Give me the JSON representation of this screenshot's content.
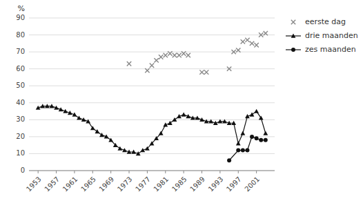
{
  "chart_data": {
    "type": "line",
    "ylabel": "%",
    "xlim": [
      1951,
      2005
    ],
    "xticks": [
      1953,
      1957,
      1961,
      1965,
      1969,
      1973,
      1977,
      1981,
      1985,
      1989,
      1993,
      1997,
      2001
    ],
    "ylim": [
      0,
      90
    ],
    "yticks": [
      0,
      10,
      20,
      30,
      40,
      50,
      60,
      70,
      80,
      90
    ],
    "grid": true,
    "legend": "right",
    "series": [
      {
        "name": "eerste dag",
        "type": "scatter",
        "color": "#888888",
        "marker": "x",
        "line_style": "none",
        "x": [
          1973,
          1977,
          1978,
          1979,
          1980,
          1981,
          1982,
          1983,
          1984,
          1985,
          1986,
          1989,
          1990,
          1995,
          1996,
          1997,
          1998,
          1999,
          2000,
          2001,
          2002,
          2003
        ],
        "values": [
          63,
          59,
          62,
          65,
          67,
          68,
          69,
          68,
          68,
          69,
          68,
          58,
          58,
          60,
          70,
          71,
          76,
          77,
          75,
          74,
          80,
          81
        ]
      },
      {
        "name": "drie maanden",
        "type": "line",
        "color": "#111111",
        "marker": "triangle",
        "line_style": "solid",
        "x": [
          1953,
          1954,
          1955,
          1956,
          1957,
          1958,
          1959,
          1960,
          1961,
          1962,
          1963,
          1964,
          1965,
          1966,
          1967,
          1968,
          1969,
          1970,
          1971,
          1972,
          1973,
          1974,
          1975,
          1976,
          1977,
          1978,
          1979,
          1980,
          1981,
          1982,
          1983,
          1984,
          1985,
          1986,
          1987,
          1988,
          1989,
          1990,
          1991,
          1992,
          1993,
          1994,
          1995,
          1996,
          1997,
          1998,
          1999,
          2000,
          2001,
          2002,
          2003
        ],
        "values": [
          37,
          38,
          38,
          38,
          37,
          36,
          35,
          34,
          33,
          31,
          30,
          29,
          25,
          23,
          21,
          20,
          18,
          15,
          13,
          12,
          11,
          11,
          10,
          12,
          13,
          16,
          19,
          22,
          27,
          28,
          30,
          32,
          33,
          32,
          31,
          31,
          30,
          29,
          29,
          28,
          29,
          29,
          28,
          28,
          16,
          22,
          32,
          33,
          35,
          31,
          22
        ]
      },
      {
        "name": "zes maanden",
        "type": "line",
        "color": "#111111",
        "marker": "circle",
        "line_style": "solid",
        "x": [
          1995,
          1997,
          1998,
          1999,
          2000,
          2001,
          2002,
          2003
        ],
        "values": [
          6,
          12,
          12,
          12,
          20,
          19,
          18,
          18
        ]
      }
    ]
  }
}
